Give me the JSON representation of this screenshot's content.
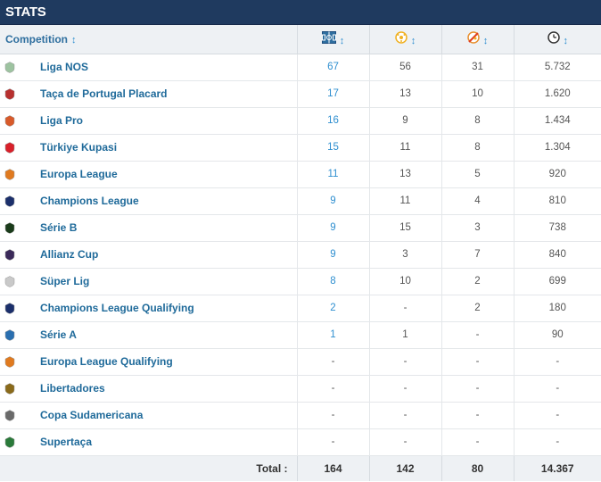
{
  "header": {
    "title": "STATS"
  },
  "columns": {
    "competition": "Competition",
    "sort_symbol": "↕",
    "icons": [
      "pitch-icon",
      "ball-icon",
      "assist-icon",
      "clock-icon"
    ]
  },
  "rows": [
    {
      "name": "Liga NOS",
      "logo": "liga-nos-logo",
      "logo_color": "#9dc3a0",
      "apps": "67",
      "goals": "56",
      "assists": "31",
      "minutes": "5.732"
    },
    {
      "name": "Taça de Portugal Placard",
      "logo": "taca-de-portugal-logo",
      "logo_color": "#b8302f",
      "apps": "17",
      "goals": "13",
      "assists": "10",
      "minutes": "1.620"
    },
    {
      "name": "Liga Pro",
      "logo": "liga-pro-logo",
      "logo_color": "#d85a2a",
      "apps": "16",
      "goals": "9",
      "assists": "8",
      "minutes": "1.434"
    },
    {
      "name": "Türkiye Kupasi",
      "logo": "turkiye-kupasi-logo",
      "logo_color": "#d8202a",
      "apps": "15",
      "goals": "11",
      "assists": "8",
      "minutes": "1.304"
    },
    {
      "name": "Europa League",
      "logo": "europa-league-logo",
      "logo_color": "#e07a1f",
      "apps": "11",
      "goals": "13",
      "assists": "5",
      "minutes": "920"
    },
    {
      "name": "Champions League",
      "logo": "champions-league-logo",
      "logo_color": "#1b2f6b",
      "apps": "9",
      "goals": "11",
      "assists": "4",
      "minutes": "810"
    },
    {
      "name": "Série B",
      "logo": "serie-b-logo",
      "logo_color": "#1a3b1a",
      "apps": "9",
      "goals": "15",
      "assists": "3",
      "minutes": "738"
    },
    {
      "name": "Allianz Cup",
      "logo": "allianz-cup-logo",
      "logo_color": "#3b2a5a",
      "apps": "9",
      "goals": "3",
      "assists": "7",
      "minutes": "840"
    },
    {
      "name": "Süper Lig",
      "logo": "super-lig-logo",
      "logo_color": "#c9c9c9",
      "apps": "8",
      "goals": "10",
      "assists": "2",
      "minutes": "699"
    },
    {
      "name": "Champions League Qualifying",
      "logo": "champions-league-qualifying-logo",
      "logo_color": "#1b2f6b",
      "apps": "2",
      "goals": "-",
      "assists": "2",
      "minutes": "180"
    },
    {
      "name": "Série A",
      "logo": "serie-a-logo",
      "logo_color": "#2a6fb0",
      "apps": "1",
      "goals": "1",
      "assists": "-",
      "minutes": "90"
    },
    {
      "name": "Europa League Qualifying",
      "logo": "europa-league-qualifying-logo",
      "logo_color": "#e07a1f",
      "apps": "-",
      "goals": "-",
      "assists": "-",
      "minutes": "-"
    },
    {
      "name": "Libertadores",
      "logo": "libertadores-logo",
      "logo_color": "#8a6a1a",
      "apps": "-",
      "goals": "-",
      "assists": "-",
      "minutes": "-"
    },
    {
      "name": "Copa Sudamericana",
      "logo": "copa-sudamericana-logo",
      "logo_color": "#6a6a6a",
      "apps": "-",
      "goals": "-",
      "assists": "-",
      "minutes": "-"
    },
    {
      "name": "Supertaça",
      "logo": "supertaca-logo",
      "logo_color": "#2a7a3a",
      "apps": "-",
      "goals": "-",
      "assists": "-",
      "minutes": "-"
    }
  ],
  "totals": {
    "label": "Total :",
    "apps": "164",
    "goals": "142",
    "assists": "80",
    "minutes": "14.367"
  }
}
